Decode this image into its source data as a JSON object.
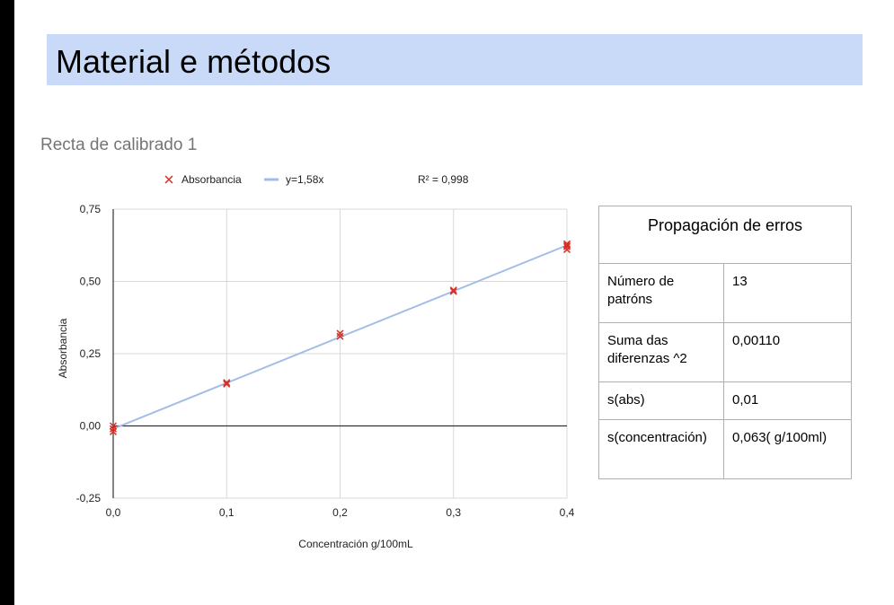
{
  "slide": {
    "title": "Material e métodos"
  },
  "chart_data": {
    "type": "scatter",
    "title": "Recta de calibrado 1",
    "xlabel": "Concentración  g/100mL",
    "ylabel": "Absorbancia",
    "xlim": [
      0,
      0.4
    ],
    "ylim": [
      -0.25,
      0.75
    ],
    "x_ticks": [
      0,
      0.1,
      0.2,
      0.3,
      0.4
    ],
    "x_tick_labels": [
      "0,0",
      "0,1",
      "0,2",
      "0,3",
      "0,4"
    ],
    "y_ticks": [
      -0.25,
      0,
      0.25,
      0.5,
      0.75
    ],
    "y_tick_labels": [
      "-0,25",
      "0,00",
      "0,25",
      "0,50",
      "0,75"
    ],
    "grid": true,
    "legend_position": "top",
    "series": [
      {
        "name": "Absorbancia",
        "marker": "x",
        "color": "#d93025",
        "points": [
          {
            "x": 0,
            "y": -0.01
          },
          {
            "x": 0,
            "y": -0.02
          },
          {
            "x": 0,
            "y": 0.0
          },
          {
            "x": 0.1,
            "y": 0.145
          },
          {
            "x": 0.1,
            "y": 0.15
          },
          {
            "x": 0.2,
            "y": 0.31
          },
          {
            "x": 0.2,
            "y": 0.32
          },
          {
            "x": 0.3,
            "y": 0.465
          },
          {
            "x": 0.3,
            "y": 0.47
          },
          {
            "x": 0.4,
            "y": 0.61
          },
          {
            "x": 0.4,
            "y": 0.62
          },
          {
            "x": 0.4,
            "y": 0.625
          },
          {
            "x": 0.4,
            "y": 0.63
          }
        ]
      },
      {
        "name": "y=1,58x",
        "type": "line",
        "color": "#a4bde7",
        "points": [
          {
            "x": 0,
            "y": -0.01
          },
          {
            "x": 0.4,
            "y": 0.625
          }
        ]
      }
    ],
    "annotation": "R² = 0,998"
  },
  "table": {
    "header": "Propagación de erros",
    "rows": [
      {
        "label": "Número de patróns",
        "value": "13"
      },
      {
        "label": "Suma das diferenzas ^2",
        "value": "0,00110"
      },
      {
        "label": "s(abs)",
        "value": "0,01"
      },
      {
        "label": "s(concentración)",
        "value": "0,063( g/100ml)"
      }
    ]
  }
}
